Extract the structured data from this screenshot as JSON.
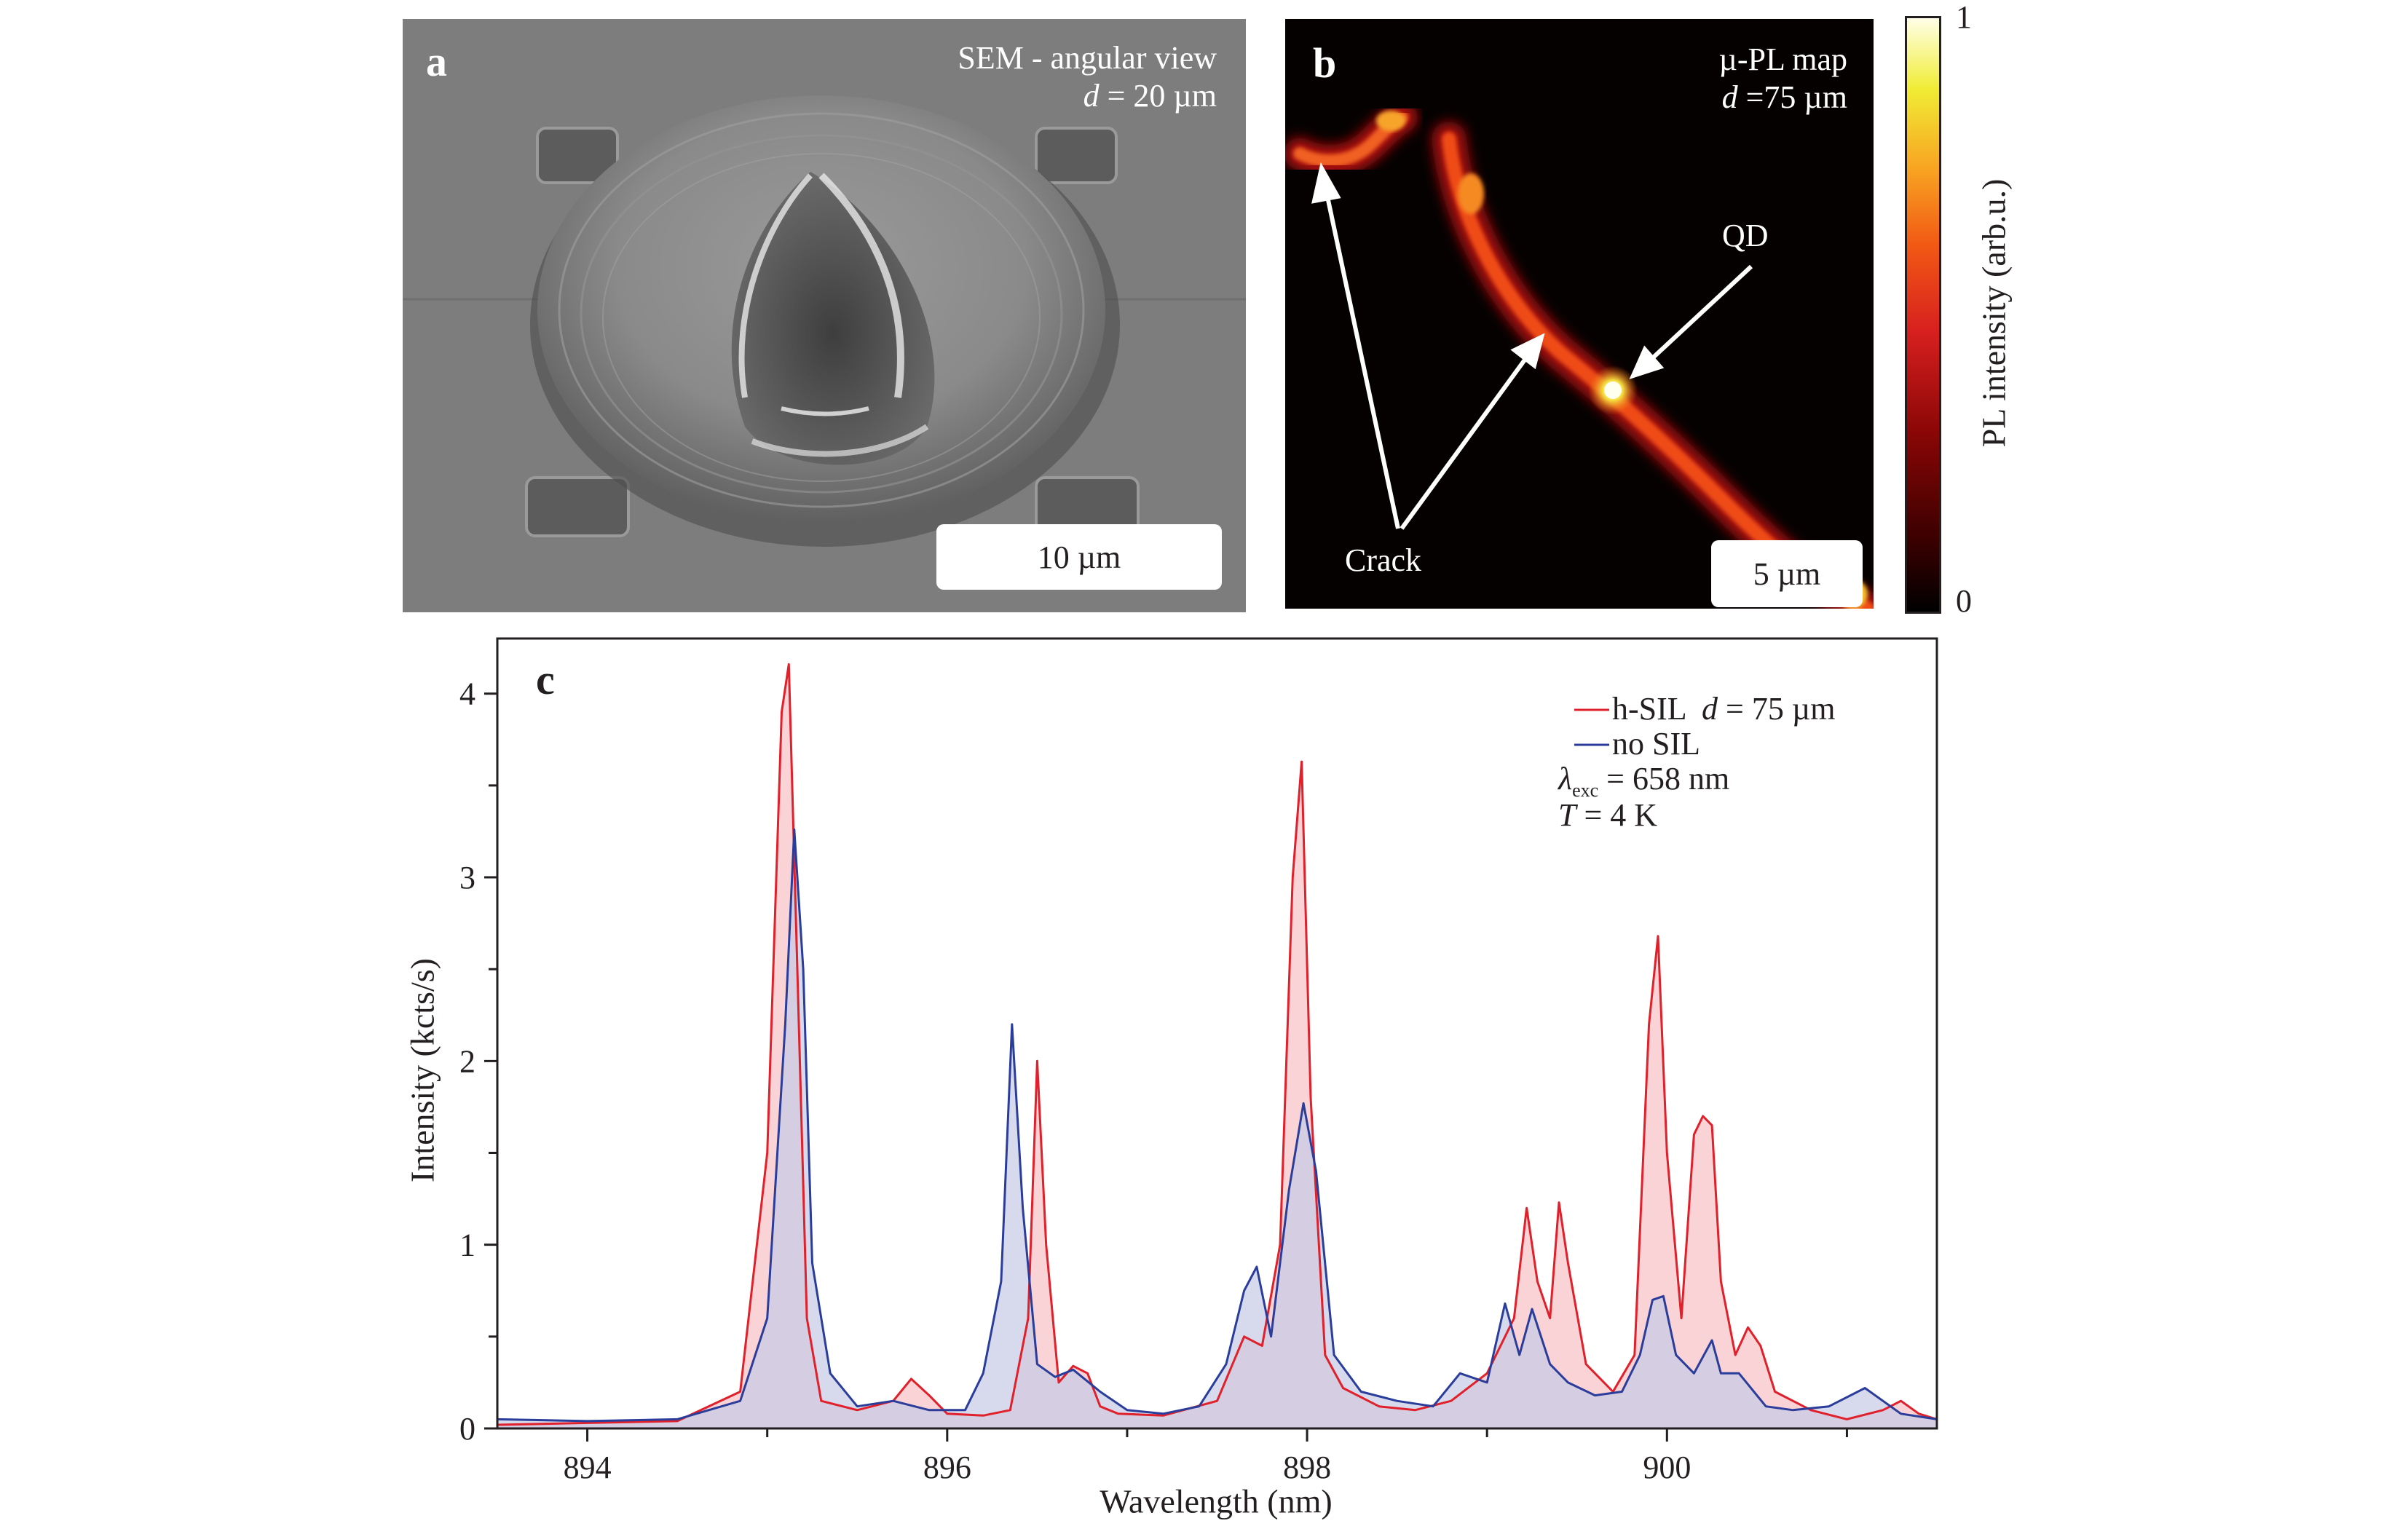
{
  "panel_a": {
    "letter": "a",
    "title": "SEM - angular view",
    "d_symbol": "d",
    "d_value": " = 20 µm",
    "scale_bar": "10 µm"
  },
  "panel_b": {
    "letter": "b",
    "title": "µ-PL map",
    "d_symbol": "d",
    "d_value": " =75 µm",
    "scale_bar": "5 µm",
    "annotations": {
      "qd": "QD",
      "crack": "Crack"
    },
    "colorbar": {
      "label": "PL intensity (arb.u.)",
      "max": "1",
      "min": "0",
      "colormap": "hot"
    }
  },
  "panel_c": {
    "letter": "c",
    "legend": {
      "series1_symbol_prefix": "h-SIL  ",
      "series1_d": "d",
      "series1_suffix": " = 75 µm",
      "series2": "no SIL",
      "lambda_symbol": "λ",
      "lambda_sub": "exc",
      "lambda_value": " = 658 nm",
      "T_symbol": "T",
      "T_value": " = 4 K"
    },
    "colors": {
      "h_sil": "#e0202a",
      "no_sil": "#2b3d9b",
      "h_sil_fill": "#f6c0c4",
      "no_sil_fill": "#c6cbe6"
    }
  },
  "chart_data": {
    "type": "line",
    "xlabel": "Wavelength (nm)",
    "ylabel": "Intensity (kcts/s)",
    "xlim": [
      893.5,
      901.5
    ],
    "ylim": [
      0,
      4.3
    ],
    "xticks": [
      894,
      896,
      898,
      900
    ],
    "yticks": [
      0,
      1,
      2,
      3,
      4
    ],
    "grid": false,
    "legend_position": "top-right",
    "series": [
      {
        "name": "h-SIL  d = 75 µm",
        "x": [
          893.5,
          894.0,
          894.5,
          894.85,
          895.0,
          895.08,
          895.12,
          895.17,
          895.22,
          895.3,
          895.5,
          895.7,
          895.8,
          895.9,
          896.0,
          896.2,
          896.35,
          896.45,
          896.5,
          896.55,
          896.62,
          896.7,
          896.78,
          896.85,
          896.95,
          897.2,
          897.5,
          897.65,
          897.75,
          897.85,
          897.92,
          897.97,
          898.02,
          898.1,
          898.2,
          898.4,
          898.6,
          898.8,
          899.0,
          899.15,
          899.22,
          899.28,
          899.35,
          899.4,
          899.45,
          899.55,
          899.7,
          899.82,
          899.9,
          899.95,
          900.0,
          900.08,
          900.15,
          900.2,
          900.25,
          900.3,
          900.38,
          900.45,
          900.52,
          900.6,
          900.8,
          901.0,
          901.2,
          901.3,
          901.4,
          901.5
        ],
        "y": [
          0.02,
          0.03,
          0.04,
          0.2,
          1.5,
          3.9,
          4.16,
          2.4,
          0.6,
          0.15,
          0.1,
          0.15,
          0.27,
          0.18,
          0.08,
          0.07,
          0.1,
          0.6,
          2.0,
          1.0,
          0.25,
          0.34,
          0.3,
          0.12,
          0.08,
          0.07,
          0.15,
          0.5,
          0.45,
          1.0,
          3.0,
          3.63,
          1.8,
          0.4,
          0.22,
          0.12,
          0.1,
          0.15,
          0.3,
          0.6,
          1.2,
          0.8,
          0.6,
          1.23,
          0.9,
          0.35,
          0.2,
          0.4,
          2.2,
          2.68,
          1.5,
          0.6,
          1.6,
          1.7,
          1.65,
          0.8,
          0.4,
          0.55,
          0.45,
          0.2,
          0.1,
          0.05,
          0.1,
          0.15,
          0.08,
          0.05
        ]
      },
      {
        "name": "no SIL",
        "x": [
          893.5,
          894.0,
          894.5,
          894.85,
          895.0,
          895.1,
          895.15,
          895.2,
          895.25,
          895.35,
          895.5,
          895.7,
          895.9,
          896.1,
          896.2,
          896.3,
          896.36,
          896.42,
          896.5,
          896.6,
          896.7,
          896.85,
          897.0,
          897.2,
          897.4,
          897.55,
          897.65,
          897.72,
          897.8,
          897.9,
          897.98,
          898.05,
          898.15,
          898.3,
          898.5,
          898.7,
          898.85,
          899.0,
          899.1,
          899.18,
          899.25,
          899.35,
          899.45,
          899.6,
          899.75,
          899.85,
          899.92,
          899.98,
          900.05,
          900.15,
          900.25,
          900.3,
          900.4,
          900.55,
          900.7,
          900.9,
          901.1,
          901.3,
          901.5
        ],
        "y": [
          0.05,
          0.04,
          0.05,
          0.15,
          0.6,
          2.2,
          3.26,
          2.5,
          0.9,
          0.3,
          0.12,
          0.15,
          0.1,
          0.1,
          0.3,
          0.8,
          2.2,
          1.2,
          0.35,
          0.28,
          0.32,
          0.2,
          0.1,
          0.08,
          0.12,
          0.35,
          0.75,
          0.88,
          0.5,
          1.3,
          1.77,
          1.4,
          0.4,
          0.2,
          0.15,
          0.12,
          0.3,
          0.25,
          0.68,
          0.4,
          0.65,
          0.35,
          0.25,
          0.18,
          0.2,
          0.4,
          0.7,
          0.72,
          0.4,
          0.3,
          0.48,
          0.3,
          0.3,
          0.12,
          0.1,
          0.12,
          0.22,
          0.08,
          0.05
        ]
      }
    ]
  }
}
